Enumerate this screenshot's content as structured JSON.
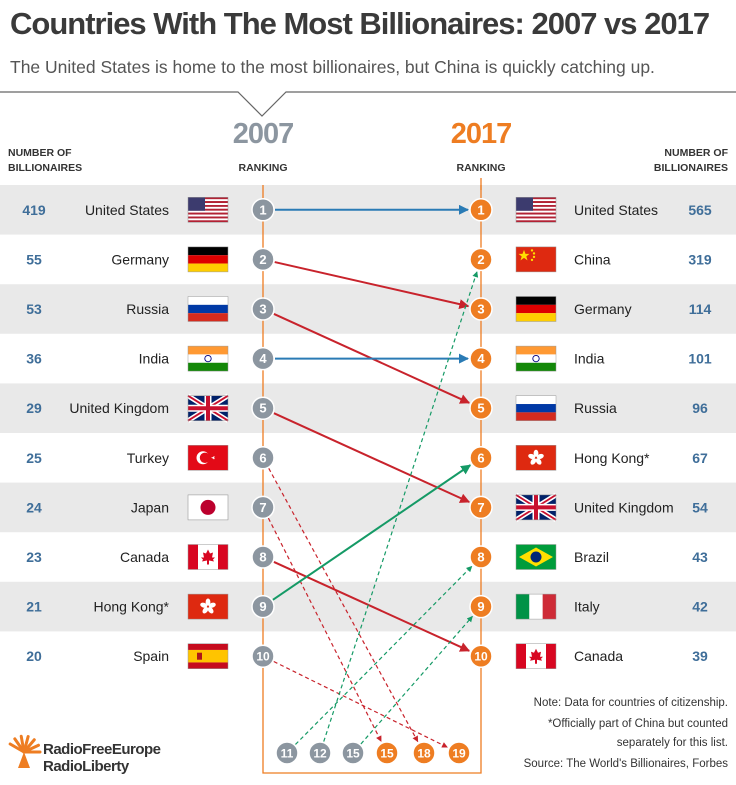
{
  "title": "Countries With The Most Billionaires: 2007 vs 2017",
  "subtitle": "The United States is home to the most billionaires, but China is quickly catching up.",
  "headers": {
    "left_count_line1": "NUMBER OF",
    "left_count_line2": "BILLIONAIRES",
    "right_count_line1": "NUMBER OF",
    "right_count_line2": "BILLIONAIRES",
    "ranking_2007": "RANKING",
    "ranking_2017": "RANKING"
  },
  "colors": {
    "orange": "#ee7d22",
    "gray": "#8c96a0",
    "blue": "#2a7bb5",
    "red": "#c8232c",
    "green": "#159a66",
    "row_shade": "#e9e9e9",
    "number_blue": "#3f6e99"
  },
  "chart_data": {
    "type": "table",
    "years": [
      "2007",
      "2017"
    ],
    "rows_2007": [
      {
        "rank": "1",
        "country": "United States",
        "count": "419",
        "flag": "us-flag"
      },
      {
        "rank": "2",
        "country": "Germany",
        "count": "55",
        "flag": "germany-flag"
      },
      {
        "rank": "3",
        "country": "Russia",
        "count": "53",
        "flag": "russia-flag"
      },
      {
        "rank": "4",
        "country": "India",
        "count": "36",
        "flag": "india-flag"
      },
      {
        "rank": "5",
        "country": "United Kingdom",
        "count": "29",
        "flag": "uk-flag"
      },
      {
        "rank": "6",
        "country": "Turkey",
        "count": "25",
        "flag": "turkey-flag"
      },
      {
        "rank": "7",
        "country": "Japan",
        "count": "24",
        "flag": "japan-flag"
      },
      {
        "rank": "8",
        "country": "Canada",
        "count": "23",
        "flag": "canada-flag"
      },
      {
        "rank": "9",
        "country": "Hong Kong*",
        "count": "21",
        "flag": "hongkong-flag"
      },
      {
        "rank": "10",
        "country": "Spain",
        "count": "20",
        "flag": "spain-flag"
      }
    ],
    "rows_2017": [
      {
        "rank": "1",
        "country": "United States",
        "count": "565",
        "flag": "us-flag"
      },
      {
        "rank": "2",
        "country": "China",
        "count": "319",
        "flag": "china-flag"
      },
      {
        "rank": "3",
        "country": "Germany",
        "count": "114",
        "flag": "germany-flag"
      },
      {
        "rank": "4",
        "country": "India",
        "count": "101",
        "flag": "india-flag"
      },
      {
        "rank": "5",
        "country": "Russia",
        "count": "96",
        "flag": "russia-flag"
      },
      {
        "rank": "6",
        "country": "Hong Kong*",
        "count": "67",
        "flag": "hongkong-flag"
      },
      {
        "rank": "7",
        "country": "United Kingdom",
        "count": "54",
        "flag": "uk-flag"
      },
      {
        "rank": "8",
        "country": "Brazil",
        "count": "43",
        "flag": "brazil-flag"
      },
      {
        "rank": "9",
        "country": "Italy",
        "count": "42",
        "flag": "italy-flag"
      },
      {
        "rank": "10",
        "country": "Canada",
        "count": "39",
        "flag": "canada-flag"
      }
    ],
    "bottom_ranks": [
      {
        "rank": "11",
        "year": "2007"
      },
      {
        "rank": "12",
        "year": "2007"
      },
      {
        "rank": "15",
        "year": "2007"
      },
      {
        "rank": "15",
        "year": "2017"
      },
      {
        "rank": "18",
        "year": "2017"
      },
      {
        "rank": "19",
        "year": "2017"
      }
    ],
    "connections": [
      {
        "from": "1",
        "to": "1",
        "trend": "same"
      },
      {
        "from": "2",
        "to": "3",
        "trend": "down"
      },
      {
        "from": "3",
        "to": "5",
        "trend": "down"
      },
      {
        "from": "4",
        "to": "4",
        "trend": "same"
      },
      {
        "from": "5",
        "to": "7",
        "trend": "down"
      },
      {
        "from": "6",
        "to": "18",
        "trend": "down",
        "off_list": true
      },
      {
        "from": "7",
        "to": "15",
        "trend": "down",
        "off_list": true
      },
      {
        "from": "8",
        "to": "10",
        "trend": "down"
      },
      {
        "from": "9",
        "to": "6",
        "trend": "up"
      },
      {
        "from": "10",
        "to": "19",
        "trend": "down",
        "off_list": true
      },
      {
        "from": "11",
        "to": "8",
        "trend": "up",
        "off_list": true
      },
      {
        "from": "12",
        "to": "2",
        "trend": "up",
        "off_list": true
      },
      {
        "from": "15",
        "to": "9",
        "trend": "up",
        "off_list": true
      }
    ]
  },
  "notes": [
    "Note: Data for countries of citizenship.",
    "*Officially part of China but counted",
    "separately for this list.",
    "Source: The World's Billionaires, Forbes"
  ],
  "logo": {
    "line1": "RadioFreeEurope",
    "line2": "RadioLiberty"
  }
}
